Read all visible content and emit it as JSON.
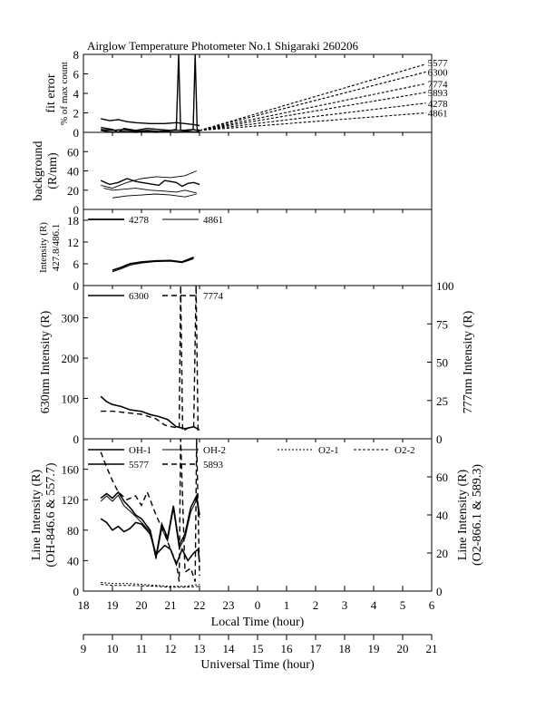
{
  "title": "Airglow Temperature Photometer No.1  Shigaraki  260206",
  "x_axis": {
    "local_label": "Local Time (hour)",
    "local_ticks": [
      "18",
      "19",
      "20",
      "21",
      "22",
      "23",
      "0",
      "1",
      "2",
      "3",
      "4",
      "5",
      "6"
    ],
    "ut_label": "Universal Time (hour)",
    "ut_ticks": [
      "9",
      "10",
      "11",
      "12",
      "13",
      "14",
      "15",
      "16",
      "17",
      "18",
      "19",
      "20",
      "21"
    ]
  },
  "chart_data": [
    {
      "type": "line",
      "panel": "fit-error",
      "ylabel": [
        "fit error",
        "% of max count"
      ],
      "ylim": [
        0,
        8
      ],
      "yticks": [
        "0",
        "2",
        "4",
        "6",
        "8"
      ],
      "series": [
        {
          "name": "5577",
          "end_value": 7.0
        },
        {
          "name": "6300",
          "end_value": 6.2
        },
        {
          "name": "7774",
          "end_value": 5.0
        },
        {
          "name": "5893",
          "end_value": 4.1
        },
        {
          "name": "4278",
          "end_value": 3.0
        },
        {
          "name": "4861",
          "end_value": 2.0
        }
      ],
      "measured": [
        {
          "x": [
            18.6,
            18.9,
            19.2,
            19.5,
            19.8,
            20.3,
            20.8,
            21.2,
            21.5,
            21.8,
            22.0
          ],
          "y": [
            1.4,
            1.2,
            1.3,
            1.1,
            1.0,
            0.9,
            0.9,
            1.0,
            0.9,
            0.8,
            0.7
          ]
        },
        {
          "x": [
            18.6,
            19.0,
            19.4,
            19.8,
            20.2,
            20.6,
            21.0,
            21.2,
            21.28,
            21.35,
            21.45,
            21.6,
            21.78,
            21.85,
            21.92,
            22.0
          ],
          "y": [
            0.3,
            0.2,
            0.3,
            0.1,
            0.2,
            0.1,
            0.2,
            0.3,
            8.0,
            0.2,
            0.2,
            0.2,
            0.3,
            8.0,
            0.3,
            0.2
          ]
        },
        {
          "x": [
            18.6,
            19.0,
            19.4,
            19.8,
            20.2,
            20.5,
            20.8,
            21.2,
            21.6,
            22.0
          ],
          "y": [
            0.2,
            -0.1,
            0.1,
            0.0,
            0.1,
            -0.3,
            0.1,
            0.0,
            0.1,
            0.0
          ]
        },
        {
          "x": [
            18.6,
            19.0,
            19.2,
            19.4,
            19.8,
            20.2,
            20.6,
            21.0,
            21.4,
            21.8,
            22.0
          ],
          "y": [
            0.5,
            0.3,
            -0.5,
            0.4,
            0.2,
            0.4,
            0.3,
            0.2,
            0.2,
            0.3,
            0.1
          ]
        }
      ]
    },
    {
      "type": "line",
      "panel": "background",
      "ylabel": [
        "background",
        "(R/nm)"
      ],
      "ylim": [
        0,
        80
      ],
      "yticks": [
        "0",
        "20",
        "40",
        "60"
      ],
      "series": [
        {
          "x": [
            18.6,
            18.9,
            19.2,
            19.5,
            19.8,
            20.2,
            20.6,
            20.8,
            21.0,
            21.2,
            21.4,
            21.6,
            21.8,
            22.0
          ],
          "y": [
            30,
            26,
            28,
            32,
            29,
            27,
            25,
            30,
            29,
            28,
            24,
            27,
            28,
            26
          ]
        },
        {
          "x": [
            18.6,
            19.0,
            19.5,
            20.0,
            20.5,
            21.0,
            21.5,
            21.9
          ],
          "y": [
            25,
            22,
            28,
            32,
            34,
            33,
            35,
            40
          ]
        },
        {
          "x": [
            19.0,
            19.5,
            20.0,
            20.5,
            21.0,
            21.5,
            21.9
          ],
          "y": [
            12,
            14,
            15,
            16,
            15,
            13,
            16
          ]
        },
        {
          "x": [
            18.7,
            19.0,
            19.4,
            19.8,
            20.3,
            20.8,
            21.2,
            21.5,
            21.9
          ],
          "y": [
            22,
            20,
            21,
            22,
            20,
            19,
            18,
            20,
            17
          ]
        }
      ]
    },
    {
      "type": "line",
      "panel": "blue-lines",
      "ylabel": [
        "Intensity (R)",
        "427.8/486.1"
      ],
      "ylim": [
        0,
        21
      ],
      "yticks": [
        "0",
        "6",
        "12",
        "18"
      ],
      "series": [
        {
          "name": "4278",
          "x": [
            19.0,
            19.3,
            19.6,
            20.0,
            20.5,
            21.0,
            21.4,
            21.8
          ],
          "y": [
            4.2,
            5.0,
            6.0,
            6.5,
            6.8,
            6.9,
            6.5,
            7.8
          ]
        },
        {
          "name": "4861",
          "x": [
            19.0,
            19.3,
            19.6,
            20.0,
            20.5,
            21.0,
            21.4,
            21.8
          ],
          "y": [
            3.8,
            4.6,
            5.6,
            6.2,
            6.6,
            6.7,
            6.3,
            7.4
          ]
        }
      ]
    },
    {
      "type": "line",
      "panel": "red-lines",
      "ylabel": "630nm Intensity (R)",
      "ylim": [
        0,
        380
      ],
      "yticks": [
        "0",
        "100",
        "200",
        "300"
      ],
      "y2label": "777nm Intensity (R)",
      "y2lim": [
        0,
        100
      ],
      "y2ticks": [
        "0",
        "25",
        "50",
        "75",
        "100"
      ],
      "series": [
        {
          "name": "6300",
          "x": [
            18.6,
            18.8,
            19.0,
            19.3,
            19.6,
            20.0,
            20.3,
            20.6,
            20.9,
            21.2,
            21.5,
            21.8,
            22.0
          ],
          "y": [
            105,
            92,
            85,
            80,
            72,
            68,
            60,
            55,
            48,
            30,
            25,
            30,
            22
          ]
        },
        {
          "name": "7774",
          "axis": "right",
          "x": [
            18.6,
            19.0,
            19.5,
            20.0,
            20.5,
            20.8,
            21.0,
            21.3,
            21.35,
            21.42,
            21.6,
            21.8,
            21.88,
            21.95,
            22.0
          ],
          "y": [
            18,
            18,
            17,
            16,
            13,
            9,
            8,
            7,
            100,
            5,
            7,
            8,
            100,
            6,
            7
          ]
        }
      ]
    },
    {
      "type": "line",
      "panel": "oh-o2",
      "ylabel": [
        "Line Intensity (R)",
        "(OH-846.6 & 557.7)"
      ],
      "ylim": [
        0,
        200
      ],
      "yticks": [
        "0",
        "40",
        "80",
        "120",
        "160"
      ],
      "y2label": [
        "Line Intensity (R)",
        "(O2-866.1 & 589.3)"
      ],
      "y2lim": [
        0,
        80
      ],
      "y2ticks": [
        "0",
        "20",
        "40",
        "60"
      ],
      "series": [
        {
          "name": "OH-1",
          "x": [
            18.6,
            18.8,
            19.0,
            19.2,
            19.4,
            19.6,
            19.8,
            20.0,
            20.3,
            20.5,
            20.7,
            20.9,
            21.1,
            21.3,
            21.5,
            21.7,
            21.9,
            22.0
          ],
          "y": [
            122,
            128,
            122,
            130,
            118,
            110,
            100,
            95,
            80,
            45,
            88,
            70,
            112,
            60,
            75,
            110,
            125,
            100
          ]
        },
        {
          "name": "OH-2",
          "x": [
            18.6,
            18.8,
            19.0,
            19.2,
            19.4,
            19.6,
            19.8,
            20.0,
            20.3,
            20.5,
            20.7,
            20.9,
            21.1,
            21.3,
            21.5,
            21.7,
            21.9,
            22.0
          ],
          "y": [
            118,
            125,
            118,
            126,
            112,
            105,
            98,
            90,
            78,
            42,
            82,
            66,
            108,
            56,
            70,
            104,
            120,
            96
          ]
        },
        {
          "name": "5577",
          "x": [
            18.6,
            18.8,
            19.0,
            19.2,
            19.4,
            19.6,
            19.8,
            20.0,
            20.3,
            20.5,
            20.8,
            21.0,
            21.2,
            21.4,
            21.6,
            21.8,
            21.95,
            22.0
          ],
          "y": [
            95,
            90,
            80,
            85,
            78,
            82,
            90,
            88,
            75,
            48,
            60,
            55,
            35,
            55,
            40,
            50,
            55,
            38
          ]
        },
        {
          "name": "5893",
          "axis": "right",
          "x": [
            18.6,
            18.8,
            19.0,
            19.2,
            19.5,
            19.8,
            20.0,
            20.2,
            20.5,
            20.8,
            21.0,
            21.2,
            21.3,
            21.35,
            21.5,
            21.7,
            21.85,
            21.9,
            22.0
          ],
          "y": [
            73,
            65,
            58,
            52,
            48,
            50,
            45,
            52,
            40,
            30,
            22,
            15,
            5,
            80,
            10,
            12,
            5,
            80,
            8
          ]
        },
        {
          "name": "O2-1",
          "axis": "right",
          "x": [
            18.6,
            19.0,
            19.5,
            20.0,
            20.5,
            21.0,
            21.5,
            22.0
          ],
          "y": [
            4.5,
            4.0,
            4.0,
            3.5,
            3.0,
            2.5,
            2.5,
            3.5
          ]
        },
        {
          "name": "O2-2",
          "axis": "right",
          "x": [
            18.6,
            19.0,
            19.5,
            20.0,
            20.5,
            21.0,
            21.5,
            22.0
          ],
          "y": [
            3.5,
            3.0,
            3.0,
            2.8,
            2.5,
            2.0,
            2.0,
            2.5
          ]
        }
      ]
    }
  ]
}
